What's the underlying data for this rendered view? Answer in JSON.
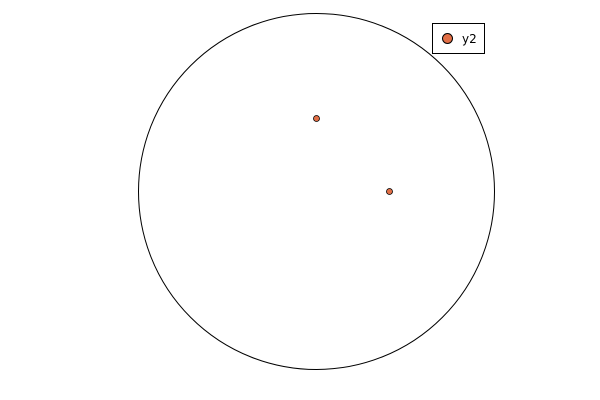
{
  "chart_data": {
    "type": "scatter",
    "coordinate_system": "polar",
    "series": [
      {
        "name": "y2",
        "color": "#e26f46",
        "points": [
          {
            "x": 0.0,
            "y": 0.41
          },
          {
            "x": 0.41,
            "y": 0.0
          }
        ]
      }
    ],
    "xlim": [
      -1,
      1
    ],
    "ylim": [
      -1,
      1
    ],
    "grid": false,
    "legend": "top-right"
  }
}
